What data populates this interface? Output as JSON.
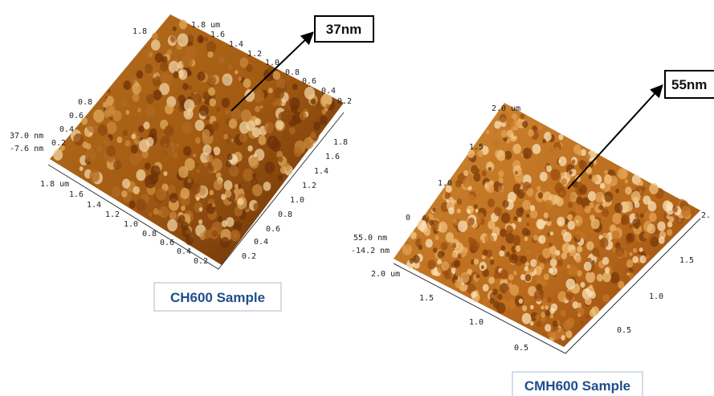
{
  "panels": [
    {
      "callout": "37nm",
      "sample": "CH600 Sample",
      "z_max": "37.0 nm",
      "z_min": "-7.6 nm",
      "top_edge": [
        "1.8 um",
        "1.6",
        "1.4",
        "1.2",
        "1.0",
        "0.8",
        "0.6",
        "0.4",
        "0.2"
      ],
      "left_edge": [
        "1.8",
        "0.8",
        "0.6",
        "0.4",
        "0.2"
      ],
      "right_edge": [
        "1.8",
        "1.6",
        "1.4",
        "1.2",
        "1.0",
        "0.8",
        "0.6",
        "0.4",
        "0.2"
      ],
      "front_edge": [
        "1.8 um",
        "1.6",
        "1.4",
        "1.2",
        "1.0",
        "0.8",
        "0.6",
        "0.4",
        "0.2"
      ]
    },
    {
      "callout": "55nm",
      "sample": "CMH600 Sample",
      "z_max": "55.0 nm",
      "z_min": "-14.2 nm",
      "top_edge": [],
      "left_edge": [
        "2.0 um",
        "1.5",
        "1.0",
        "0"
      ],
      "right_edge": [
        "2.",
        "1.5",
        "1.0",
        "0.5"
      ],
      "front_edge": [
        "2.0 um",
        "1.5",
        "1.0",
        "0.5"
      ]
    }
  ]
}
